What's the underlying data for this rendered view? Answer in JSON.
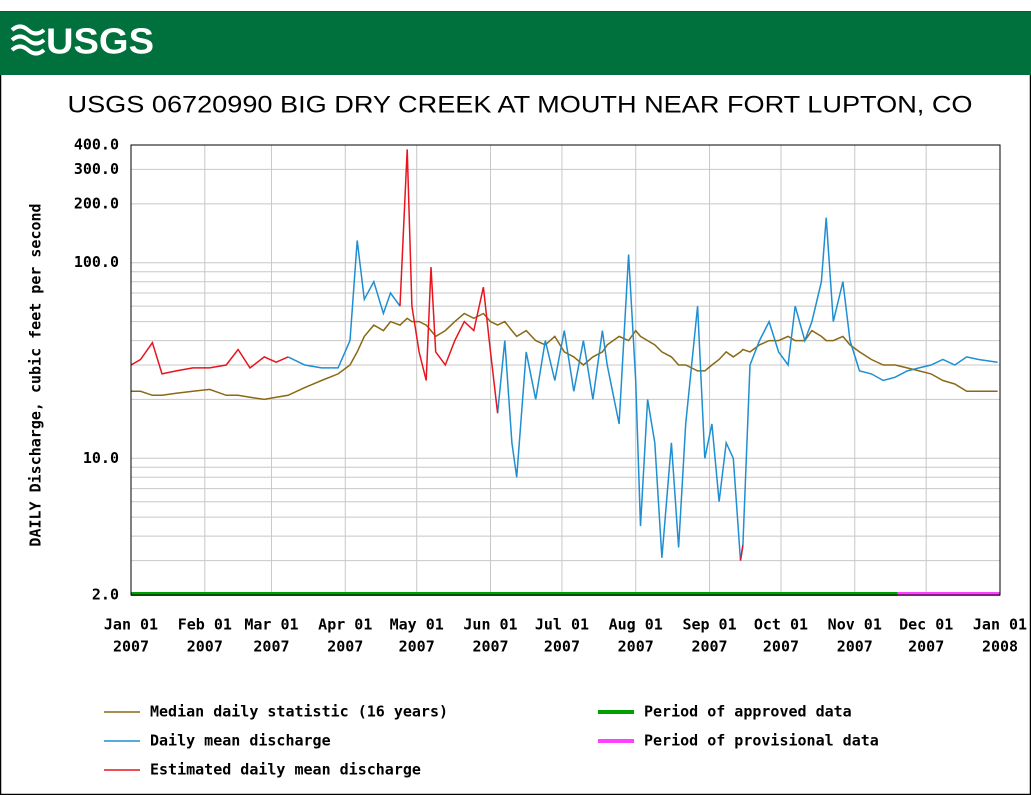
{
  "header": {
    "logo": "USGS"
  },
  "chart_data": {
    "type": "line",
    "title": "USGS 06720990 BIG DRY CREEK AT MOUTH NEAR FORT LUPTON, CO",
    "ylabel": "DAILY Discharge, cubic feet per second",
    "log_scale": true,
    "grid": true,
    "xlim": [
      "2007-01-01",
      "2008-01-01"
    ],
    "xticks": [
      {
        "value": "2007-01-01",
        "label": [
          "Jan 01",
          "2007"
        ]
      },
      {
        "value": "2007-02-01",
        "label": [
          "Feb 01",
          "2007"
        ]
      },
      {
        "value": "2007-03-01",
        "label": [
          "Mar 01",
          "2007"
        ]
      },
      {
        "value": "2007-04-01",
        "label": [
          "Apr 01",
          "2007"
        ]
      },
      {
        "value": "2007-05-01",
        "label": [
          "May 01",
          "2007"
        ]
      },
      {
        "value": "2007-06-01",
        "label": [
          "Jun 01",
          "2007"
        ]
      },
      {
        "value": "2007-07-01",
        "label": [
          "Jul 01",
          "2007"
        ]
      },
      {
        "value": "2007-08-01",
        "label": [
          "Aug 01",
          "2007"
        ]
      },
      {
        "value": "2007-09-01",
        "label": [
          "Sep 01",
          "2007"
        ]
      },
      {
        "value": "2007-10-01",
        "label": [
          "Oct 01",
          "2007"
        ]
      },
      {
        "value": "2007-11-01",
        "label": [
          "Nov 01",
          "2007"
        ]
      },
      {
        "value": "2007-12-01",
        "label": [
          "Dec 01",
          "2007"
        ]
      },
      {
        "value": "2008-01-01",
        "label": [
          "Jan 01",
          "2008"
        ]
      }
    ],
    "ylim": [
      2,
      400
    ],
    "yticks": [
      {
        "value": 2,
        "label": "2.0"
      },
      {
        "value": 10,
        "label": "10.0"
      },
      {
        "value": 100,
        "label": "100.0"
      },
      {
        "value": 200,
        "label": "200.0"
      },
      {
        "value": 300,
        "label": "300.0"
      },
      {
        "value": 400,
        "label": "400.0"
      }
    ],
    "minor_yticks": [
      3,
      4,
      5,
      6,
      7,
      8,
      9,
      20,
      30,
      40,
      50,
      60,
      70,
      80,
      90
    ],
    "x": [
      "2007-01-01",
      "2007-01-05",
      "2007-01-10",
      "2007-01-14",
      "2007-01-20",
      "2007-01-27",
      "2007-02-03",
      "2007-02-10",
      "2007-02-15",
      "2007-02-20",
      "2007-02-26",
      "2007-03-03",
      "2007-03-08",
      "2007-03-15",
      "2007-03-22",
      "2007-03-29",
      "2007-04-03",
      "2007-04-06",
      "2007-04-09",
      "2007-04-13",
      "2007-04-17",
      "2007-04-20",
      "2007-04-24",
      "2007-04-27",
      "2007-04-29",
      "2007-05-02",
      "2007-05-05",
      "2007-05-07",
      "2007-05-09",
      "2007-05-13",
      "2007-05-17",
      "2007-05-21",
      "2007-05-25",
      "2007-05-29",
      "2007-06-01",
      "2007-06-04",
      "2007-06-07",
      "2007-06-10",
      "2007-06-12",
      "2007-06-16",
      "2007-06-20",
      "2007-06-24",
      "2007-06-28",
      "2007-07-02",
      "2007-07-06",
      "2007-07-10",
      "2007-07-14",
      "2007-07-18",
      "2007-07-20",
      "2007-07-25",
      "2007-07-29",
      "2007-08-01",
      "2007-08-03",
      "2007-08-06",
      "2007-08-09",
      "2007-08-12",
      "2007-08-16",
      "2007-08-19",
      "2007-08-22",
      "2007-08-27",
      "2007-08-30",
      "2007-09-02",
      "2007-09-05",
      "2007-09-08",
      "2007-09-11",
      "2007-09-14",
      "2007-09-15",
      "2007-09-18",
      "2007-09-22",
      "2007-09-26",
      "2007-09-30",
      "2007-10-04",
      "2007-10-07",
      "2007-10-11",
      "2007-10-14",
      "2007-10-18",
      "2007-10-20",
      "2007-10-23",
      "2007-10-27",
      "2007-10-30",
      "2007-11-03",
      "2007-11-08",
      "2007-11-13",
      "2007-11-18",
      "2007-11-23",
      "2007-11-28",
      "2007-12-03",
      "2007-12-08",
      "2007-12-13",
      "2007-12-18",
      "2007-12-23",
      "2007-12-31"
    ],
    "series": [
      {
        "name": "Median daily statistic (16 years)",
        "color": "#8b6914",
        "values": [
          22,
          22,
          21,
          21,
          21.5,
          22,
          22.5,
          21,
          21,
          20.5,
          20,
          20.5,
          21,
          23,
          25,
          27,
          30,
          35,
          42,
          48,
          45,
          50,
          48,
          52,
          50,
          50,
          48,
          45,
          42,
          45,
          50,
          55,
          52,
          55,
          50,
          48,
          50,
          45,
          42,
          45,
          40,
          38,
          42,
          35,
          33,
          30,
          33,
          35,
          38,
          42,
          40,
          45,
          42,
          40,
          38,
          35,
          33,
          30,
          30,
          28,
          28,
          30,
          32,
          35,
          33,
          35,
          36,
          35,
          38,
          40,
          40,
          42,
          40,
          40,
          45,
          42,
          40,
          40,
          42,
          38,
          35,
          32,
          30,
          30,
          29,
          28,
          27,
          25,
          24,
          22,
          22,
          22
        ]
      },
      {
        "name": "Daily mean discharge",
        "color": "#1e8fd2",
        "values": [
          null,
          null,
          null,
          null,
          null,
          null,
          null,
          null,
          null,
          null,
          null,
          null,
          33,
          30,
          29,
          29,
          40,
          130,
          65,
          80,
          55,
          70,
          60,
          null,
          null,
          null,
          null,
          null,
          null,
          null,
          null,
          null,
          null,
          null,
          null,
          17,
          40,
          12,
          8,
          35,
          20,
          40,
          25,
          45,
          22,
          40,
          20,
          45,
          30,
          15,
          110,
          25,
          4.5,
          20,
          12,
          3.1,
          12,
          3.5,
          15,
          60,
          10,
          15,
          6,
          12,
          10,
          3.0,
          3.6,
          30,
          40,
          50,
          35,
          30,
          60,
          40,
          50,
          80,
          170,
          50,
          80,
          40,
          28,
          27,
          25,
          26,
          28,
          29,
          30,
          32,
          30,
          33,
          32,
          31
        ]
      },
      {
        "name": "Estimated daily mean discharge",
        "color": "#e8141e",
        "values": [
          30,
          32,
          39,
          27,
          28,
          29,
          29,
          30,
          36,
          29,
          33,
          31,
          33,
          null,
          null,
          null,
          null,
          null,
          null,
          null,
          null,
          null,
          60,
          380,
          60,
          35,
          25,
          95,
          35,
          30,
          40,
          50,
          45,
          75,
          35,
          17,
          null,
          null,
          null,
          null,
          null,
          null,
          null,
          null,
          null,
          null,
          null,
          null,
          null,
          null,
          null,
          null,
          null,
          null,
          null,
          null,
          null,
          null,
          null,
          null,
          null,
          null,
          null,
          null,
          null,
          3.0,
          3.6,
          null,
          null,
          null,
          null,
          null,
          null,
          null,
          null,
          null,
          null,
          null,
          null,
          null,
          null,
          null,
          null,
          null,
          null,
          null,
          null,
          null,
          null,
          null,
          null,
          null
        ]
      }
    ],
    "periods": [
      {
        "name": "Period of approved data",
        "color": "#00a000",
        "start": "2007-01-01",
        "end": "2007-11-19"
      },
      {
        "name": "Period of provisional data",
        "color": "#ff40ff",
        "start": "2007-11-19",
        "end": "2008-01-01"
      }
    ]
  }
}
